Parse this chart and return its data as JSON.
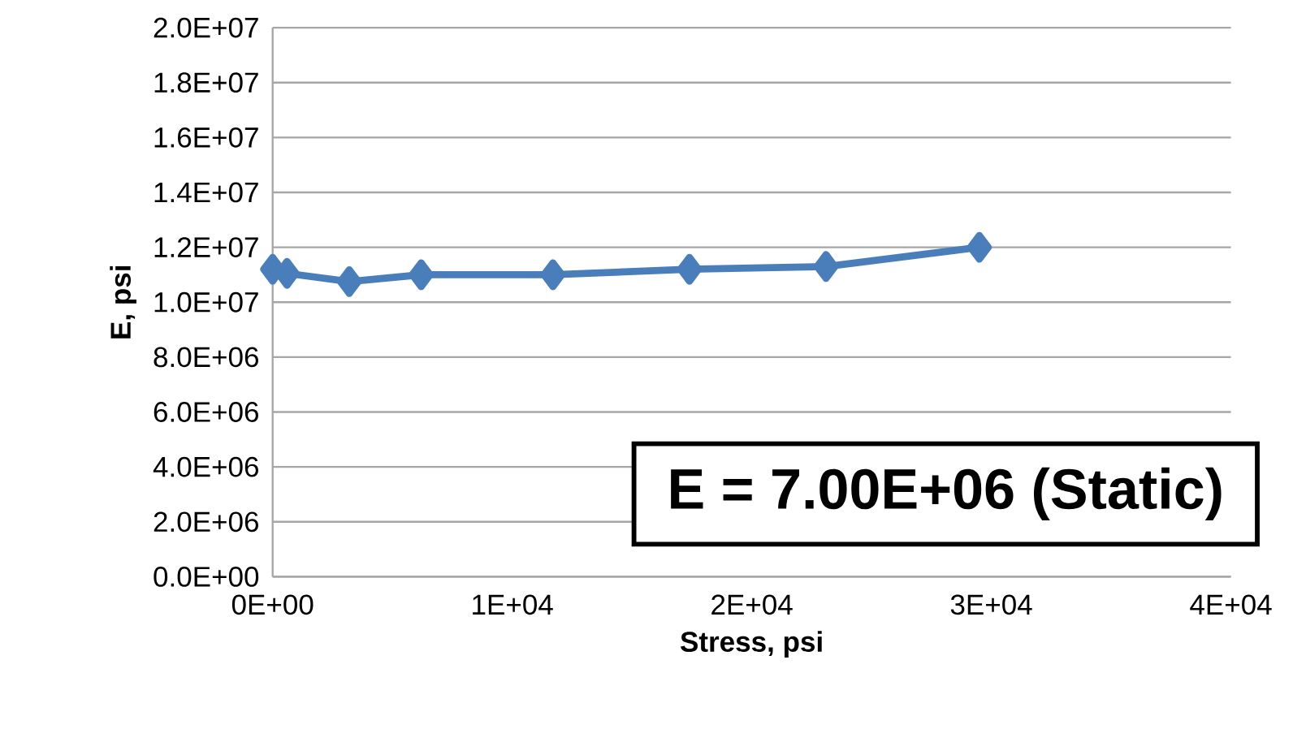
{
  "chart_data": {
    "type": "line",
    "xlabel": "Stress, psi",
    "ylabel": "E, psi",
    "x": [
      0,
      600,
      3200,
      6200,
      11700,
      17400,
      23100,
      29500
    ],
    "series": [
      {
        "color": "#4a7ebb",
        "values": [
          11200000,
          11050000,
          10750000,
          11000000,
          11000000,
          11200000,
          11300000,
          12000000
        ]
      }
    ],
    "xlim": [
      0,
      40000
    ],
    "xticks": [
      {
        "value": 0,
        "label": "0E+00"
      },
      {
        "value": 10000,
        "label": "1E+04"
      },
      {
        "value": 20000,
        "label": "2E+04"
      },
      {
        "value": 30000,
        "label": "3E+04"
      },
      {
        "value": 40000,
        "label": "4E+04"
      }
    ],
    "ylim": [
      0,
      20000000
    ],
    "yticks": [
      {
        "value": 0,
        "label": "0.0E+00"
      },
      {
        "value": 2000000,
        "label": "2.0E+06"
      },
      {
        "value": 4000000,
        "label": "4.0E+06"
      },
      {
        "value": 6000000,
        "label": "6.0E+06"
      },
      {
        "value": 8000000,
        "label": "8.0E+06"
      },
      {
        "value": 10000000,
        "label": "1.0E+07"
      },
      {
        "value": 12000000,
        "label": "1.2E+07"
      },
      {
        "value": 14000000,
        "label": "1.4E+07"
      },
      {
        "value": 16000000,
        "label": "1.6E+07"
      },
      {
        "value": 18000000,
        "label": "1.8E+07"
      },
      {
        "value": 20000000,
        "label": "2.0E+07"
      }
    ],
    "grid": "y",
    "marker": "diamond",
    "line_style": "solid",
    "annotations": [
      "E = 7.00E+06 (Static)"
    ]
  }
}
